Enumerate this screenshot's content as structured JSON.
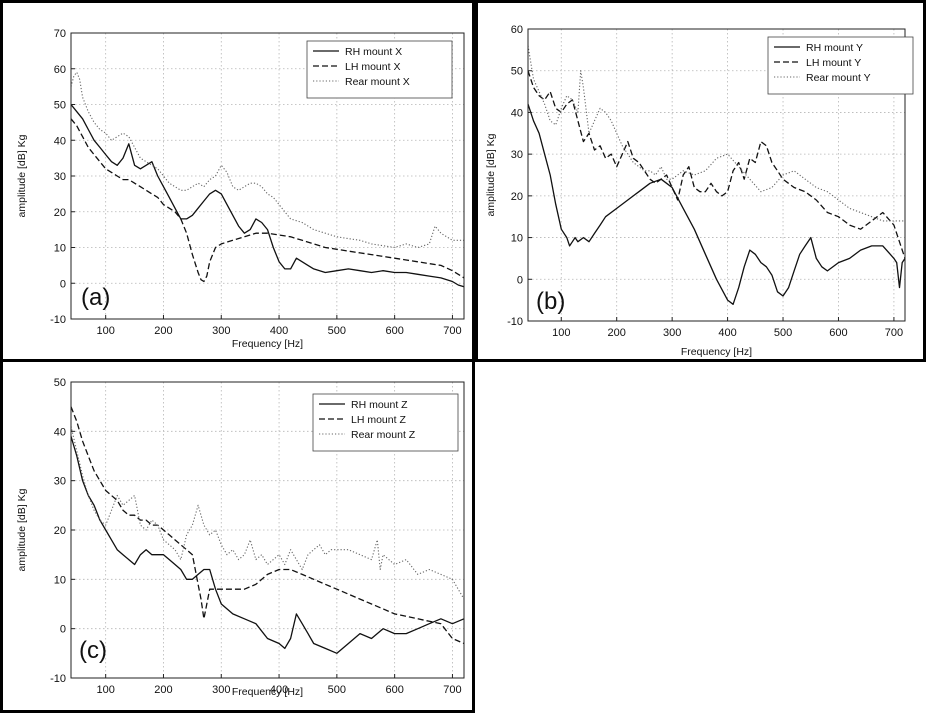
{
  "chart_data": [
    {
      "type": "line",
      "panel_label": "(a)",
      "xlabel": "Frequency [Hz]",
      "ylabel": "amplitude [dB] Kg",
      "xlim": [
        40,
        720
      ],
      "ylim": [
        -10,
        70
      ],
      "xticks": [
        100,
        200,
        300,
        400,
        500,
        600,
        700
      ],
      "yticks": [
        -10,
        0,
        10,
        20,
        30,
        40,
        50,
        60,
        70
      ],
      "grid": true,
      "legend_position": "top-right",
      "series": [
        {
          "name": "RH mount X",
          "style": "solid",
          "x": [
            40,
            50,
            60,
            70,
            80,
            90,
            100,
            110,
            120,
            130,
            140,
            145,
            150,
            160,
            170,
            180,
            190,
            200,
            210,
            220,
            230,
            240,
            250,
            260,
            270,
            280,
            290,
            300,
            310,
            320,
            330,
            340,
            350,
            360,
            370,
            380,
            390,
            400,
            410,
            420,
            430,
            440,
            450,
            460,
            480,
            500,
            520,
            540,
            560,
            580,
            600,
            620,
            640,
            660,
            680,
            700,
            710,
            720
          ],
          "y": [
            50,
            48,
            46,
            43,
            40,
            38,
            36,
            34,
            33,
            35,
            39,
            36,
            33,
            32,
            33,
            34,
            30,
            27,
            24,
            21,
            18,
            18,
            19,
            21,
            23,
            25,
            26,
            25,
            22,
            19,
            16,
            14,
            15,
            18,
            17,
            15,
            10,
            6,
            4,
            4,
            7,
            6,
            5,
            4,
            3,
            3.5,
            4,
            3.5,
            3,
            3.5,
            3,
            3,
            2.5,
            2,
            1.5,
            0.5,
            -0.5,
            -1
          ]
        },
        {
          "name": "LH mount X",
          "style": "dashed",
          "x": [
            40,
            50,
            60,
            70,
            80,
            90,
            100,
            110,
            120,
            130,
            140,
            150,
            160,
            170,
            180,
            190,
            200,
            210,
            220,
            230,
            240,
            250,
            260,
            265,
            270,
            275,
            280,
            290,
            300,
            320,
            340,
            360,
            380,
            400,
            420,
            440,
            460,
            480,
            500,
            520,
            540,
            560,
            580,
            600,
            620,
            640,
            660,
            680,
            700,
            720
          ],
          "y": [
            46,
            44,
            41,
            38,
            36,
            34,
            32,
            31,
            30,
            29,
            29,
            28,
            27,
            26,
            25,
            24,
            22,
            21,
            20,
            18,
            14,
            8,
            3,
            1,
            0.5,
            2,
            6,
            10,
            11,
            12,
            13,
            14,
            14,
            13.5,
            13,
            12,
            11,
            10,
            9.5,
            9,
            8.5,
            8,
            7.5,
            7,
            6.5,
            6,
            5.5,
            5,
            3.5,
            1.5
          ]
        },
        {
          "name": "Rear mount X",
          "style": "dotted",
          "x": [
            40,
            45,
            50,
            55,
            60,
            70,
            80,
            90,
            100,
            110,
            120,
            130,
            140,
            150,
            160,
            170,
            180,
            190,
            200,
            210,
            220,
            230,
            240,
            250,
            260,
            270,
            280,
            290,
            300,
            310,
            320,
            330,
            340,
            350,
            360,
            370,
            380,
            390,
            400,
            410,
            420,
            440,
            460,
            480,
            500,
            520,
            540,
            560,
            580,
            600,
            620,
            640,
            660,
            670,
            680,
            700,
            720
          ],
          "y": [
            55,
            58,
            59,
            57,
            52,
            48,
            45,
            43,
            42,
            40,
            41,
            42,
            41,
            38,
            35,
            34,
            33,
            32,
            30,
            28,
            27,
            26,
            26,
            27,
            28,
            27,
            29,
            30,
            33,
            31,
            27,
            26,
            27,
            28,
            28,
            27,
            25,
            24,
            22,
            20,
            18,
            17,
            15,
            14,
            13,
            12.5,
            12,
            11,
            10.5,
            10,
            11,
            10,
            11,
            16,
            14,
            12,
            12
          ]
        }
      ]
    },
    {
      "type": "line",
      "panel_label": "(b)",
      "xlabel": "Frequency [Hz]",
      "ylabel": "amplitude [dB] Kg",
      "xlim": [
        40,
        720
      ],
      "ylim": [
        -10,
        60
      ],
      "xticks": [
        100,
        200,
        300,
        400,
        500,
        600,
        700
      ],
      "yticks": [
        -10,
        0,
        10,
        20,
        30,
        40,
        50,
        60
      ],
      "grid": true,
      "legend_position": "top-right",
      "series": [
        {
          "name": "RH mount Y",
          "style": "solid",
          "x": [
            40,
            50,
            60,
            70,
            80,
            90,
            100,
            110,
            115,
            120,
            125,
            130,
            140,
            150,
            160,
            170,
            180,
            200,
            220,
            240,
            260,
            280,
            290,
            300,
            320,
            340,
            360,
            380,
            400,
            410,
            420,
            430,
            440,
            450,
            460,
            470,
            480,
            490,
            500,
            510,
            520,
            530,
            540,
            550,
            560,
            570,
            580,
            600,
            620,
            640,
            660,
            680,
            700,
            705,
            710,
            715,
            720
          ],
          "y": [
            42,
            38,
            35,
            30,
            25,
            18,
            12,
            10,
            8,
            9,
            10,
            9,
            10,
            9,
            11,
            13,
            15,
            17,
            19,
            21,
            23,
            24,
            23,
            22,
            17,
            12,
            6,
            0,
            -5,
            -6,
            -2,
            3,
            7,
            6,
            4,
            3,
            1,
            -3,
            -4,
            -2,
            2,
            6,
            8,
            10,
            5,
            3,
            2,
            4,
            5,
            7,
            8,
            8,
            5,
            4,
            -2,
            4,
            5
          ]
        },
        {
          "name": "LH mount Y",
          "style": "dashed",
          "x": [
            40,
            50,
            60,
            70,
            80,
            90,
            100,
            110,
            120,
            130,
            140,
            150,
            160,
            170,
            180,
            190,
            200,
            210,
            220,
            230,
            240,
            250,
            260,
            270,
            280,
            290,
            300,
            310,
            320,
            330,
            340,
            350,
            360,
            370,
            380,
            390,
            400,
            410,
            420,
            430,
            440,
            450,
            460,
            470,
            480,
            490,
            500,
            520,
            540,
            560,
            580,
            600,
            620,
            640,
            660,
            680,
            700,
            720
          ],
          "y": [
            50,
            46,
            44,
            43,
            45,
            41,
            40,
            42,
            43,
            38,
            33,
            35,
            31,
            32,
            29,
            30,
            27,
            30,
            33,
            29,
            28,
            26,
            24,
            23,
            24,
            25,
            22,
            19,
            25,
            27,
            22,
            21,
            21,
            23,
            21,
            20,
            21,
            26,
            28,
            24,
            29,
            28,
            33,
            32,
            28,
            26,
            24,
            22,
            21,
            19,
            16,
            15,
            13,
            12,
            14,
            16,
            13,
            5
          ]
        },
        {
          "name": "Rear mount Y",
          "style": "dotted",
          "x": [
            40,
            50,
            60,
            70,
            80,
            90,
            100,
            110,
            120,
            130,
            135,
            140,
            150,
            160,
            170,
            180,
            190,
            200,
            210,
            220,
            230,
            240,
            250,
            260,
            270,
            280,
            290,
            300,
            320,
            340,
            360,
            380,
            400,
            420,
            440,
            460,
            480,
            500,
            520,
            540,
            560,
            580,
            600,
            620,
            640,
            660,
            680,
            700,
            720
          ],
          "y": [
            56,
            48,
            45,
            42,
            38,
            37,
            41,
            44,
            43,
            40,
            50,
            46,
            35,
            38,
            41,
            40,
            38,
            35,
            32,
            30,
            28,
            27,
            26,
            26,
            25,
            27,
            24,
            24,
            26,
            25,
            26,
            29,
            30,
            27,
            24,
            21,
            22,
            25,
            26,
            24,
            22,
            21,
            19,
            17,
            16,
            15,
            14,
            14,
            14
          ]
        }
      ]
    },
    {
      "type": "line",
      "panel_label": "(c)",
      "xlabel": "Frequency [Hz]",
      "ylabel": "amplitude [dB] Kg",
      "xlim": [
        40,
        720
      ],
      "ylim": [
        -10,
        50
      ],
      "xticks": [
        100,
        200,
        300,
        400,
        500,
        600,
        700
      ],
      "yticks": [
        -10,
        0,
        10,
        20,
        30,
        40,
        50
      ],
      "grid": true,
      "legend_position": "top-right",
      "series": [
        {
          "name": "RH mount Z",
          "style": "solid",
          "x": [
            40,
            50,
            60,
            70,
            80,
            90,
            100,
            110,
            120,
            130,
            140,
            150,
            160,
            170,
            180,
            190,
            200,
            210,
            220,
            230,
            240,
            250,
            260,
            270,
            280,
            290,
            300,
            320,
            340,
            360,
            380,
            400,
            410,
            420,
            430,
            440,
            450,
            460,
            480,
            500,
            520,
            540,
            560,
            580,
            600,
            620,
            640,
            660,
            680,
            700,
            720
          ],
          "y": [
            39,
            35,
            30,
            27,
            25,
            22,
            20,
            18,
            16,
            15,
            14,
            13,
            15,
            16,
            15,
            15,
            15,
            14,
            13,
            12,
            10,
            10,
            11,
            12,
            12,
            8,
            5,
            3,
            2,
            1,
            -2,
            -3,
            -4,
            -2,
            3,
            1,
            -1,
            -3,
            -4,
            -5,
            -3,
            -1,
            -2,
            0,
            -1,
            -1,
            0,
            1,
            2,
            1,
            2
          ]
        },
        {
          "name": "LH mount Z",
          "style": "dashed",
          "x": [
            40,
            50,
            60,
            70,
            80,
            90,
            100,
            110,
            120,
            130,
            140,
            150,
            160,
            170,
            180,
            190,
            200,
            210,
            220,
            230,
            240,
            250,
            260,
            265,
            270,
            275,
            280,
            290,
            300,
            320,
            340,
            360,
            380,
            400,
            420,
            440,
            460,
            480,
            500,
            520,
            540,
            560,
            580,
            600,
            620,
            640,
            660,
            680,
            700,
            720
          ],
          "y": [
            45,
            42,
            38,
            35,
            32,
            30,
            28,
            27,
            26,
            24,
            23,
            23,
            22,
            22,
            21,
            21,
            20,
            19,
            18,
            17,
            16,
            15,
            9,
            6,
            2,
            5,
            8,
            8,
            8,
            8,
            8,
            9,
            11,
            12,
            12,
            11,
            10,
            9,
            8,
            7,
            6,
            5,
            4,
            3,
            2.5,
            2,
            1.5,
            1,
            -2,
            -3
          ]
        },
        {
          "name": "Rear mount Z",
          "style": "dotted",
          "x": [
            40,
            50,
            60,
            70,
            80,
            90,
            100,
            110,
            120,
            130,
            140,
            150,
            160,
            170,
            180,
            190,
            200,
            210,
            220,
            230,
            240,
            250,
            260,
            270,
            280,
            290,
            300,
            310,
            320,
            330,
            340,
            350,
            360,
            370,
            380,
            390,
            400,
            410,
            420,
            430,
            440,
            450,
            460,
            470,
            480,
            490,
            500,
            520,
            540,
            560,
            570,
            575,
            580,
            600,
            620,
            640,
            660,
            680,
            700,
            720
          ],
          "y": [
            41,
            36,
            31,
            27,
            24,
            22,
            21,
            24,
            27,
            25,
            26,
            27,
            21,
            20,
            22,
            21,
            18,
            17,
            16,
            14,
            19,
            21,
            25,
            21,
            19,
            20,
            17,
            15,
            16,
            14,
            15,
            18,
            14,
            15,
            13,
            14,
            15,
            13,
            16,
            14,
            12,
            15,
            16,
            17,
            15,
            16,
            16,
            16,
            15,
            14,
            18,
            12,
            15,
            13,
            14,
            11,
            12,
            11,
            10,
            6
          ]
        }
      ]
    }
  ]
}
